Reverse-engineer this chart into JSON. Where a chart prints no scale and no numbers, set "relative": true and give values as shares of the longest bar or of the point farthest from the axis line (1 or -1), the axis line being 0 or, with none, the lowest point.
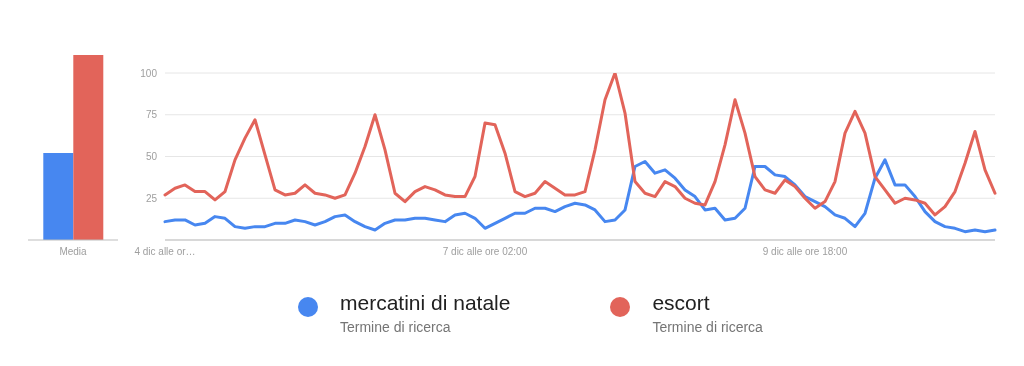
{
  "chart_data": [
    {
      "type": "bar",
      "relative": true,
      "categories": [
        "Media"
      ],
      "series": [
        {
          "color": "#4787f0",
          "values": [
            0.47
          ]
        },
        {
          "color": "#e2645a",
          "values": [
            1
          ]
        }
      ]
    },
    {
      "type": "line",
      "legend": "bottom",
      "grid": "y",
      "line_style": "solid",
      "ylim": [
        0,
        100
      ],
      "yticks": [
        25,
        50,
        75,
        100
      ],
      "categories": [
        "4 dic alle or…",
        null,
        null,
        null,
        null,
        null,
        null,
        null,
        null,
        null,
        null,
        null,
        null,
        null,
        null,
        null,
        null,
        null,
        null,
        null,
        null,
        null,
        null,
        null,
        null,
        null,
        null,
        null,
        null,
        null,
        null,
        null,
        "7 dic alle ore 02:00",
        null,
        null,
        null,
        null,
        null,
        null,
        null,
        null,
        null,
        null,
        null,
        null,
        null,
        null,
        null,
        null,
        null,
        null,
        null,
        null,
        null,
        null,
        null,
        null,
        null,
        null,
        null,
        null,
        null,
        null,
        null,
        "9 dic alle ore 18:00",
        null,
        null,
        null,
        null,
        null,
        null,
        null,
        null,
        null,
        null,
        null,
        null,
        null,
        null,
        null,
        null,
        null,
        null,
        null
      ],
      "series": [
        {
          "name": "mercatini di natale",
          "color": "#4787f0",
          "values": [
            11,
            12,
            12,
            9,
            10,
            14,
            13,
            8,
            7,
            8,
            8,
            10,
            10,
            12,
            11,
            9,
            11,
            14,
            15,
            11,
            8,
            6,
            10,
            12,
            12,
            13,
            13,
            12,
            11,
            15,
            16,
            13,
            7,
            10,
            13,
            16,
            16,
            19,
            19,
            17,
            20,
            22,
            21,
            18,
            11,
            12,
            18,
            44,
            47,
            40,
            42,
            37,
            30,
            26,
            18,
            19,
            12,
            13,
            19,
            44,
            44,
            39,
            38,
            33,
            26,
            23,
            20,
            15,
            13,
            8,
            16,
            37,
            48,
            33,
            33,
            26,
            17,
            11,
            8,
            7,
            5,
            6,
            5,
            6
          ]
        },
        {
          "name": "escort",
          "color": "#e2645a",
          "values": [
            27,
            31,
            33,
            29,
            29,
            24,
            29,
            48,
            61,
            72,
            51,
            30,
            27,
            28,
            33,
            28,
            27,
            25,
            27,
            40,
            56,
            75,
            54,
            28,
            23,
            29,
            32,
            30,
            27,
            26,
            26,
            38,
            70,
            69,
            52,
            29,
            26,
            28,
            35,
            31,
            27,
            27,
            29,
            54,
            84,
            100,
            76,
            35,
            28,
            26,
            35,
            32,
            25,
            22,
            21,
            35,
            57,
            84,
            64,
            38,
            30,
            28,
            36,
            32,
            25,
            19,
            23,
            35,
            64,
            77,
            64,
            38,
            30,
            22,
            25,
            24,
            22,
            15,
            20,
            29,
            46,
            65,
            42,
            28
          ]
        }
      ],
      "annotations": [
        "Termine di ricerca",
        "Termine di ricerca"
      ]
    }
  ]
}
